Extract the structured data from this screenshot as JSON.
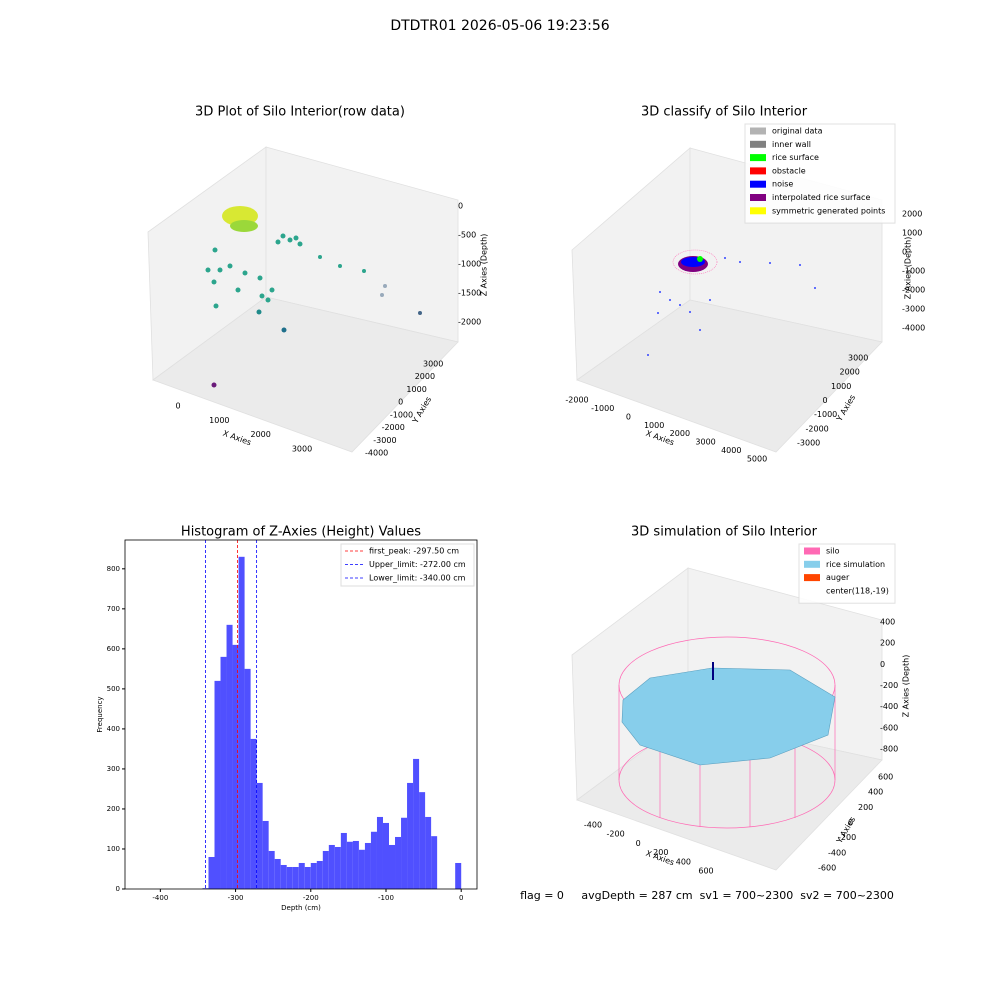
{
  "title": "DTDTR01 2026-05-06 19:23:56",
  "chart_data": [
    {
      "type": "scatter3d",
      "title": "3D Plot of Silo Interior(row data)",
      "xlabel": "X Axies",
      "ylabel": "Y Axies",
      "zlabel": "Z Axies (Depth)",
      "xticks": [
        0,
        1000,
        2000,
        3000
      ],
      "yticks": [
        -4000,
        -3000,
        -2000,
        -1000,
        0,
        1000,
        2000,
        3000
      ],
      "zticks": [
        -2000,
        -1500,
        -1000,
        -500,
        0
      ]
    },
    {
      "type": "scatter3d",
      "title": "3D classify of Silo Interior",
      "xlabel": "X Axies",
      "ylabel": "Y Axies",
      "zlabel": "Z Axies (Depth)",
      "xticks": [
        -2000,
        -1000,
        0,
        1000,
        2000,
        3000,
        4000,
        5000
      ],
      "yticks": [
        -3000,
        -2000,
        -1000,
        0,
        1000,
        2000,
        3000
      ],
      "zticks": [
        -4000,
        -3000,
        -2000,
        -1000,
        0,
        1000,
        2000
      ],
      "legend": "upper right",
      "series": [
        {
          "name": "original data",
          "color": "#b3b3b3"
        },
        {
          "name": "inner wall",
          "color": "#808080"
        },
        {
          "name": "rice surface",
          "color": "#00ff00"
        },
        {
          "name": "obstacle",
          "color": "#ff0000"
        },
        {
          "name": "noise",
          "color": "#0000ff"
        },
        {
          "name": "interpolated rice surface",
          "color": "#800080"
        },
        {
          "name": "symmetric generated points",
          "color": "#ffff00"
        }
      ]
    },
    {
      "type": "histogram",
      "title": "Histogram of Z-Axies (Height) Values",
      "xlabel": "Depth (cm)",
      "ylabel": "Frequency",
      "color": "#5050ff",
      "bins": [
        -344,
        -336,
        -328,
        -320,
        -312,
        -304,
        -296,
        -288,
        -280,
        -272,
        -264,
        -256,
        -248,
        -240,
        -232,
        -224,
        -216,
        -208,
        -200,
        -192,
        -184,
        -176,
        -168,
        -160,
        -152,
        -144,
        -136,
        -128,
        -120,
        -112,
        -104,
        -96,
        -88,
        -80,
        -72,
        -64,
        -56,
        -48,
        -40,
        -32,
        -24,
        -16,
        -8,
        0
      ],
      "counts": [
        2,
        80,
        520,
        580,
        660,
        610,
        830,
        550,
        375,
        265,
        170,
        95,
        75,
        60,
        55,
        55,
        65,
        55,
        65,
        70,
        95,
        110,
        105,
        140,
        118,
        120,
        98,
        115,
        143,
        180,
        165,
        110,
        130,
        178,
        265,
        325,
        242,
        180,
        132,
        0,
        0,
        0,
        65
      ],
      "xlim": [
        -447,
        21
      ],
      "ylim": [
        0,
        872
      ],
      "xticks": [
        -400,
        -300,
        -200,
        -100,
        0
      ],
      "yticks": [
        0,
        100,
        200,
        300,
        400,
        500,
        600,
        700,
        800
      ],
      "legend": "upper right",
      "vlines": [
        {
          "name": "first_peak: -297.50 cm",
          "value": -297.5,
          "color": "#ff0000"
        },
        {
          "name": "Upper_limit: -272.00 cm",
          "value": -272,
          "color": "#0000ff"
        },
        {
          "name": "Lower_limit: -340.00 cm",
          "value": -340,
          "color": "#0000ff"
        }
      ]
    },
    {
      "type": "surface3d",
      "title": "3D simulation of Silo Interior",
      "xlabel": "X Axies",
      "ylabel": "Y Axies",
      "zlabel": "Z Axies (Depth)",
      "xticks": [
        -400,
        -200,
        0,
        200,
        400,
        600
      ],
      "yticks": [
        -600,
        -400,
        -200,
        0,
        200,
        400,
        600
      ],
      "zticks": [
        -800,
        -600,
        -400,
        -200,
        0,
        200,
        400
      ],
      "legend": "upper right",
      "series": [
        {
          "name": "silo",
          "color": "#ff69b4"
        },
        {
          "name": "rice simulation",
          "color": "#87ceeb"
        },
        {
          "name": "auger",
          "color": "#ff4500"
        },
        {
          "name": "center(118,-19)",
          "color": null
        }
      ],
      "annotation": "flag = 0     avgDepth = 287 cm  sv1 = 700~2300  sv2 = 700~2300"
    }
  ]
}
